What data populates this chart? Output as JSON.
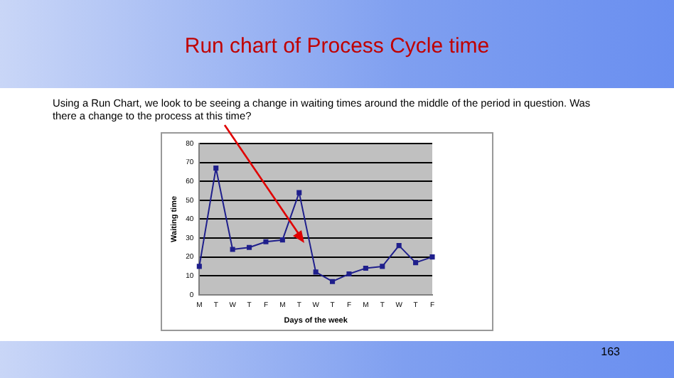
{
  "chart_data": {
    "type": "line",
    "title": "Run chart of Process Cycle time",
    "xlabel": "Days of the week",
    "ylabel": "Waiting time",
    "annotations": [
      "Using a Run Chart, we look to be seeing a change in waiting times around the middle of the period in question. Was there a change to the process at this time?",
      "163"
    ],
    "categories": [
      "M",
      "T",
      "W",
      "T",
      "F",
      "M",
      "T",
      "W",
      "T",
      "F",
      "M",
      "T",
      "W",
      "T",
      "F"
    ],
    "series": [
      {
        "color": "#1f1f8c",
        "values": [
          15,
          67,
          24,
          25,
          28,
          29,
          54,
          12,
          7,
          11,
          14,
          15,
          26,
          17,
          20
        ]
      }
    ],
    "ylim": [
      0,
      80
    ],
    "yticks": [
      0,
      10,
      20,
      30,
      40,
      50,
      60,
      70,
      80
    ],
    "grid": "y",
    "legend": false,
    "marker": "square",
    "line_style": "solid"
  }
}
